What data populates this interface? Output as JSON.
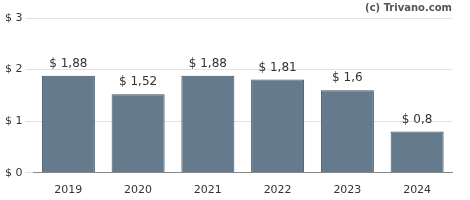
{
  "chart_data": {
    "type": "bar",
    "annotation": "(c) Trivano.com",
    "categories": [
      "2019",
      "2020",
      "2021",
      "2022",
      "2023",
      "2024"
    ],
    "values": [
      1.88,
      1.52,
      1.88,
      1.81,
      1.6,
      0.8
    ],
    "value_labels": [
      "$ 1,88",
      "$ 1,52",
      "$ 1,88",
      "$ 1,81",
      "$ 1,6",
      "$ 0,8"
    ],
    "data_labels": true,
    "color": "#657b8d",
    "ylim": [
      0,
      3
    ],
    "yticks": [
      {
        "value": 0,
        "label": "$ 0"
      },
      {
        "value": 1,
        "label": "$ 1"
      },
      {
        "value": 2,
        "label": "$ 2"
      },
      {
        "value": 3,
        "label": "$ 3"
      }
    ],
    "grid": true
  }
}
